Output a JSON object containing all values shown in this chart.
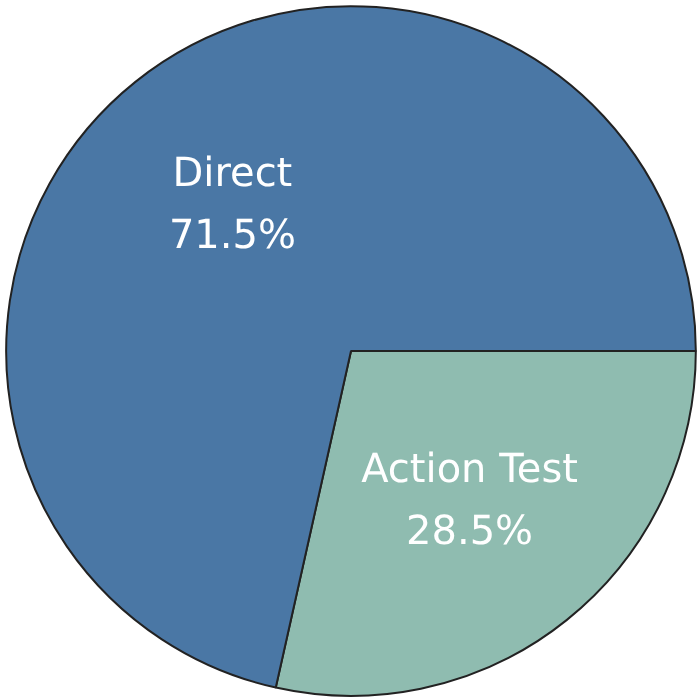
{
  "chart_data": {
    "type": "pie",
    "categories": [
      "Direct",
      "Action Test"
    ],
    "values": [
      71.5,
      28.5
    ],
    "colors": [
      "#4a77a5",
      "#8fbcb0"
    ],
    "value_labels": [
      "71.5%",
      "28.5%"
    ]
  }
}
